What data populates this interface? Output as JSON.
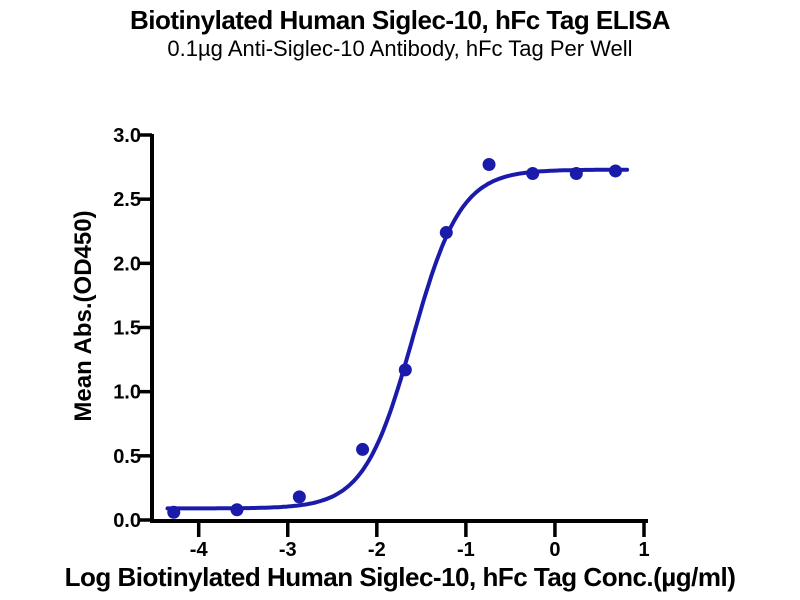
{
  "chart_data": {
    "type": "scatter",
    "title": "Biotinylated Human Siglec-10, hFc Tag ELISA",
    "subtitle": "0.1µg Anti-Siglec-10 Antibody, hFc Tag Per Well",
    "xlabel": "Log Biotinylated Human Siglec-10, hFc Tag Conc.(µg/ml)",
    "ylabel": "Mean Abs.(OD450)",
    "xlim": [
      -4.57,
      1.04
    ],
    "ylim": [
      0.0,
      3.0
    ],
    "xticks": [
      -4,
      -3,
      -2,
      -1,
      0,
      1
    ],
    "xtick_labels": [
      "-4",
      "-3",
      "-2",
      "-1",
      "0",
      "1"
    ],
    "yticks": [
      0.0,
      0.5,
      1.0,
      1.5,
      2.0,
      2.5,
      3.0
    ],
    "ytick_labels": [
      "0.0",
      "0.5",
      "1.0",
      "1.5",
      "2.0",
      "2.5",
      "3.0"
    ],
    "grid": false,
    "legend": "none",
    "x": [
      -4.28,
      -3.57,
      -2.87,
      -2.16,
      -1.68,
      -1.22,
      -0.74,
      -0.25,
      0.24,
      0.68
    ],
    "y": [
      0.06,
      0.08,
      0.18,
      0.55,
      1.17,
      2.24,
      2.77,
      2.7,
      2.7,
      2.72
    ],
    "curve_fit": {
      "model": "4PL-sigmoid",
      "bottom": 0.09,
      "top": 2.73,
      "log_ec50": -1.6,
      "hill_slope": 1.6,
      "x_start": -4.35,
      "x_end": 0.82
    },
    "colors": {
      "series": "#1b1bab",
      "axis": "#000000",
      "background": "#ffffff"
    }
  }
}
